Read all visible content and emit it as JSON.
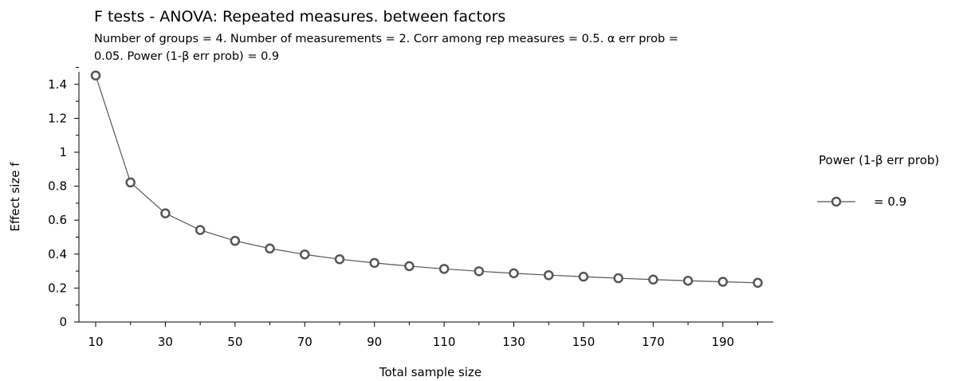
{
  "chart_data": {
    "type": "line",
    "title": "F tests - ANOVA: Repeated measures. between factors",
    "subtitle_lines": [
      "Number of groups = 4. Number of measurements = 2. Corr among rep measures = 0.5. α err prob =",
      "0.05. Power (1-β err prob) = 0.9"
    ],
    "xlabel": "Total sample size",
    "ylabel": "Effect size f",
    "xlim": [
      8,
      205
    ],
    "ylim": [
      0,
      1.5
    ],
    "x_ticks": [
      10,
      30,
      50,
      70,
      90,
      110,
      130,
      150,
      170,
      190
    ],
    "y_ticks": [
      0,
      0.2,
      0.4,
      0.6,
      0.8,
      1,
      1.2,
      1.4
    ],
    "y_tick_labels": [
      "0",
      "0.2",
      "0.4",
      "0.6",
      "0.8",
      "1",
      "1.2",
      "1.4"
    ],
    "grid": false,
    "legend": {
      "title": "Power (1-β err prob)",
      "position": "right",
      "entries": [
        {
          "label": "= 0.9"
        }
      ]
    },
    "series": [
      {
        "x": [
          10,
          20,
          30,
          40,
          50,
          60,
          70,
          80,
          90,
          100,
          110,
          120,
          130,
          140,
          150,
          160,
          170,
          180,
          190,
          200
        ],
        "values": [
          1.452,
          0.822,
          0.64,
          0.542,
          0.478,
          0.433,
          0.398,
          0.37,
          0.348,
          0.329,
          0.313,
          0.299,
          0.287,
          0.276,
          0.267,
          0.258,
          0.25,
          0.243,
          0.237,
          0.231
        ]
      }
    ],
    "colors": {
      "line": "#555555",
      "marker_stroke": "#555555",
      "marker_fill": "#ffffff",
      "axis": "#000000"
    }
  }
}
